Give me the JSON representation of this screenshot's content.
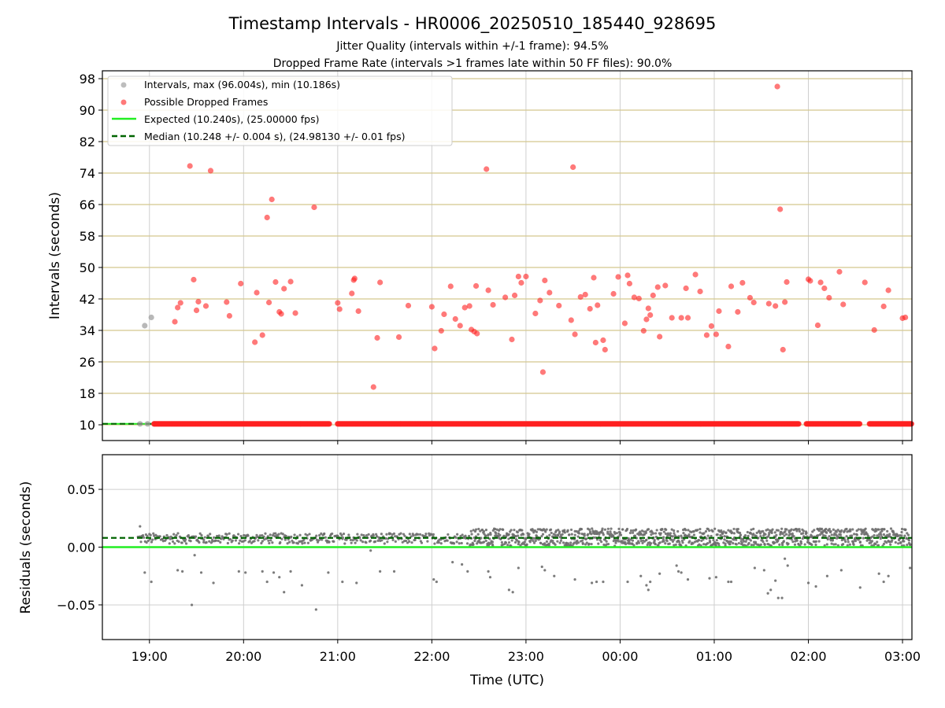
{
  "figure": {
    "title": "Timestamp Intervals - HR0006_20250510_185440_928695",
    "subtitle_line1": "Jitter Quality (intervals within +/-1 frame): 94.5%",
    "subtitle_line2": "Dropped Frame Rate (intervals >1 frames late within 50 FF files): 90.0%"
  },
  "colors": {
    "intervals": "#9a9a9a",
    "dropped": "#ff2020",
    "expected": "#22ee22",
    "median": "#006400",
    "residuals": "#6e6e6e",
    "hgrid_top": "#d4c88e",
    "grid": "#cfcfcf"
  },
  "chart_data": [
    {
      "type": "scatter",
      "ylabel": "Intervals (seconds)",
      "ylim": [
        6,
        100
      ],
      "yticks": [
        10,
        18,
        26,
        34,
        42,
        50,
        58,
        66,
        74,
        82,
        90,
        98
      ],
      "xlim": [
        -0.5,
        8.1
      ],
      "grid": true,
      "legend_position": "top-left",
      "legend": {
        "intervals": "Intervals, max (96.004s), min (10.186s)",
        "dropped": "Possible Dropped Frames",
        "expected": "Expected (10.240s), (25.00000 fps)",
        "median": "Median (10.248 +/- 0.004 s), (24.98130 +/- 0.01 fps)"
      },
      "expected_value": 10.24,
      "median_value": 10.248,
      "series": [
        {
          "name": "Intervals, max (96.004s), min (10.186s)",
          "points": [
            [
              -0.05,
              35.2
            ],
            [
              0.02,
              37.3
            ],
            [
              -0.1,
              10.24
            ],
            [
              -0.02,
              10.24
            ],
            [
              0.05,
              10.24
            ]
          ]
        },
        {
          "name": "Possible Dropped Frames",
          "baseline_value": 10.24,
          "baseline_segments": [
            [
              0.05,
              1.92
            ],
            [
              2.0,
              6.9
            ],
            [
              6.98,
              7.55
            ],
            [
              7.65,
              8.1
            ]
          ],
          "points": [
            [
              0.27,
              36.2
            ],
            [
              0.3,
              39.8
            ],
            [
              0.33,
              41.0
            ],
            [
              0.43,
              75.8
            ],
            [
              0.47,
              46.9
            ],
            [
              0.5,
              39.1
            ],
            [
              0.52,
              41.3
            ],
            [
              0.6,
              40.2
            ],
            [
              0.65,
              74.6
            ],
            [
              0.82,
              41.2
            ],
            [
              0.85,
              37.7
            ],
            [
              0.97,
              45.9
            ],
            [
              1.12,
              31.0
            ],
            [
              1.14,
              43.6
            ],
            [
              1.2,
              32.8
            ],
            [
              1.25,
              62.7
            ],
            [
              1.27,
              41.1
            ],
            [
              1.3,
              67.3
            ],
            [
              1.34,
              46.3
            ],
            [
              1.38,
              38.7
            ],
            [
              1.4,
              38.2
            ],
            [
              1.43,
              44.6
            ],
            [
              1.5,
              46.4
            ],
            [
              1.55,
              38.4
            ],
            [
              1.75,
              65.3
            ],
            [
              2.0,
              41.0
            ],
            [
              2.02,
              39.4
            ],
            [
              2.15,
              43.4
            ],
            [
              2.17,
              46.8
            ],
            [
              2.18,
              47.2
            ],
            [
              2.22,
              38.9
            ],
            [
              2.38,
              19.6
            ],
            [
              2.42,
              32.1
            ],
            [
              2.45,
              46.2
            ],
            [
              2.65,
              32.3
            ],
            [
              2.75,
              40.3
            ],
            [
              3.0,
              40.0
            ],
            [
              3.03,
              29.4
            ],
            [
              3.1,
              33.9
            ],
            [
              3.13,
              38.1
            ],
            [
              3.2,
              45.2
            ],
            [
              3.25,
              36.9
            ],
            [
              3.3,
              35.2
            ],
            [
              3.35,
              39.8
            ],
            [
              3.4,
              40.2
            ],
            [
              3.42,
              34.2
            ],
            [
              3.45,
              33.7
            ],
            [
              3.48,
              33.2
            ],
            [
              3.47,
              45.3
            ],
            [
              3.58,
              75.0
            ],
            [
              3.6,
              44.2
            ],
            [
              3.65,
              40.5
            ],
            [
              3.78,
              42.4
            ],
            [
              3.85,
              31.7
            ],
            [
              3.88,
              42.9
            ],
            [
              3.92,
              47.7
            ],
            [
              3.95,
              46.1
            ],
            [
              4.0,
              47.7
            ],
            [
              4.1,
              38.3
            ],
            [
              4.15,
              41.6
            ],
            [
              4.18,
              23.4
            ],
            [
              4.2,
              46.7
            ],
            [
              4.25,
              43.6
            ],
            [
              4.35,
              40.3
            ],
            [
              4.48,
              36.6
            ],
            [
              4.5,
              75.5
            ],
            [
              4.52,
              33.0
            ],
            [
              4.58,
              42.5
            ],
            [
              4.63,
              43.1
            ],
            [
              4.68,
              39.5
            ],
            [
              4.72,
              47.4
            ],
            [
              4.74,
              30.9
            ],
            [
              4.76,
              40.4
            ],
            [
              4.82,
              31.5
            ],
            [
              4.84,
              29.1
            ],
            [
              4.93,
              43.3
            ],
            [
              4.98,
              47.6
            ],
            [
              5.05,
              35.8
            ],
            [
              5.08,
              48.0
            ],
            [
              5.1,
              45.9
            ],
            [
              5.15,
              42.4
            ],
            [
              5.2,
              42.1
            ],
            [
              5.25,
              33.9
            ],
            [
              5.28,
              36.8
            ],
            [
              5.3,
              39.6
            ],
            [
              5.32,
              37.9
            ],
            [
              5.35,
              42.9
            ],
            [
              5.4,
              45.0
            ],
            [
              5.42,
              32.4
            ],
            [
              5.48,
              45.4
            ],
            [
              5.55,
              37.2
            ],
            [
              5.65,
              37.2
            ],
            [
              5.7,
              44.7
            ],
            [
              5.72,
              37.2
            ],
            [
              5.8,
              48.2
            ],
            [
              5.85,
              43.9
            ],
            [
              5.92,
              32.8
            ],
            [
              5.97,
              35.1
            ],
            [
              6.02,
              33.0
            ],
            [
              6.05,
              38.9
            ],
            [
              6.15,
              29.9
            ],
            [
              6.18,
              45.2
            ],
            [
              6.25,
              38.7
            ],
            [
              6.3,
              46.1
            ],
            [
              6.38,
              42.3
            ],
            [
              6.42,
              41.1
            ],
            [
              6.58,
              40.8
            ],
            [
              6.65,
              40.2
            ],
            [
              6.67,
              96.0
            ],
            [
              6.7,
              64.8
            ],
            [
              6.73,
              29.1
            ],
            [
              6.75,
              41.2
            ],
            [
              6.77,
              46.3
            ],
            [
              7.0,
              47.0
            ],
            [
              7.02,
              46.6
            ],
            [
              7.1,
              35.3
            ],
            [
              7.13,
              46.2
            ],
            [
              7.17,
              44.7
            ],
            [
              7.22,
              42.3
            ],
            [
              7.33,
              48.9
            ],
            [
              7.37,
              40.6
            ],
            [
              7.6,
              46.2
            ],
            [
              7.7,
              34.1
            ],
            [
              7.8,
              40.1
            ],
            [
              7.85,
              44.2
            ],
            [
              8.0,
              37.1
            ],
            [
              8.03,
              37.3
            ]
          ]
        }
      ]
    },
    {
      "type": "scatter",
      "xlabel": "Time (UTC)",
      "ylabel": "Residuals (seconds)",
      "ylim": [
        -0.08,
        0.08
      ],
      "yticks": [
        0.05,
        0.0,
        -0.05
      ],
      "ytick_labels": [
        "0.05",
        "0.00",
        "−0.05"
      ],
      "xlim": [
        -0.5,
        8.1
      ],
      "x_tick_positions": [
        0,
        1,
        2,
        3,
        4,
        5,
        6,
        7,
        8
      ],
      "x_tick_labels": [
        "19:00",
        "20:00",
        "21:00",
        "22:00",
        "23:00",
        "00:00",
        "01:00",
        "02:00",
        "03:00"
      ],
      "grid": true,
      "expected_residual": 0.0,
      "median_residual": 0.008,
      "series": [
        {
          "name": "Residuals",
          "dense_band_note": "most points cluster at 0.002 to 0.016",
          "outliers": [
            [
              -0.1,
              0.018
            ],
            [
              -0.05,
              -0.022
            ],
            [
              0.02,
              -0.03
            ],
            [
              0.3,
              -0.02
            ],
            [
              0.35,
              -0.021
            ],
            [
              0.45,
              -0.05
            ],
            [
              0.48,
              -0.007
            ],
            [
              0.55,
              -0.022
            ],
            [
              0.68,
              -0.031
            ],
            [
              0.95,
              -0.021
            ],
            [
              1.02,
              -0.022
            ],
            [
              1.2,
              -0.021
            ],
            [
              1.25,
              -0.03
            ],
            [
              1.32,
              -0.022
            ],
            [
              1.38,
              -0.026
            ],
            [
              1.43,
              -0.039
            ],
            [
              1.5,
              -0.021
            ],
            [
              1.62,
              -0.033
            ],
            [
              1.77,
              -0.054
            ],
            [
              1.9,
              -0.022
            ],
            [
              2.05,
              -0.03
            ],
            [
              2.2,
              -0.031
            ],
            [
              2.35,
              -0.003
            ],
            [
              2.45,
              -0.021
            ],
            [
              2.6,
              -0.021
            ],
            [
              3.02,
              -0.028
            ],
            [
              3.05,
              -0.03
            ],
            [
              3.22,
              -0.013
            ],
            [
              3.32,
              -0.015
            ],
            [
              3.38,
              -0.021
            ],
            [
              3.6,
              -0.021
            ],
            [
              3.62,
              -0.026
            ],
            [
              3.82,
              -0.037
            ],
            [
              3.86,
              -0.039
            ],
            [
              3.92,
              -0.018
            ],
            [
              4.17,
              -0.017
            ],
            [
              4.2,
              -0.02
            ],
            [
              4.3,
              -0.025
            ],
            [
              4.52,
              -0.028
            ],
            [
              4.7,
              -0.031
            ],
            [
              4.75,
              -0.03
            ],
            [
              4.82,
              -0.03
            ],
            [
              5.08,
              -0.03
            ],
            [
              5.22,
              -0.025
            ],
            [
              5.28,
              -0.033
            ],
            [
              5.3,
              -0.037
            ],
            [
              5.32,
              -0.03
            ],
            [
              5.42,
              -0.023
            ],
            [
              5.6,
              -0.016
            ],
            [
              5.62,
              -0.021
            ],
            [
              5.65,
              -0.022
            ],
            [
              5.72,
              -0.028
            ],
            [
              5.95,
              -0.027
            ],
            [
              6.02,
              -0.026
            ],
            [
              6.15,
              -0.03
            ],
            [
              6.18,
              -0.03
            ],
            [
              6.43,
              -0.018
            ],
            [
              6.53,
              -0.02
            ],
            [
              6.57,
              -0.04
            ],
            [
              6.6,
              -0.037
            ],
            [
              6.65,
              -0.029
            ],
            [
              6.68,
              -0.044
            ],
            [
              6.72,
              -0.044
            ],
            [
              6.75,
              -0.01
            ],
            [
              6.78,
              -0.016
            ],
            [
              7.0,
              -0.031
            ],
            [
              7.08,
              -0.034
            ],
            [
              7.2,
              -0.025
            ],
            [
              7.35,
              -0.02
            ],
            [
              7.55,
              -0.035
            ],
            [
              7.75,
              -0.023
            ],
            [
              7.8,
              -0.03
            ],
            [
              7.85,
              -0.025
            ],
            [
              8.08,
              -0.018
            ]
          ]
        }
      ]
    }
  ]
}
